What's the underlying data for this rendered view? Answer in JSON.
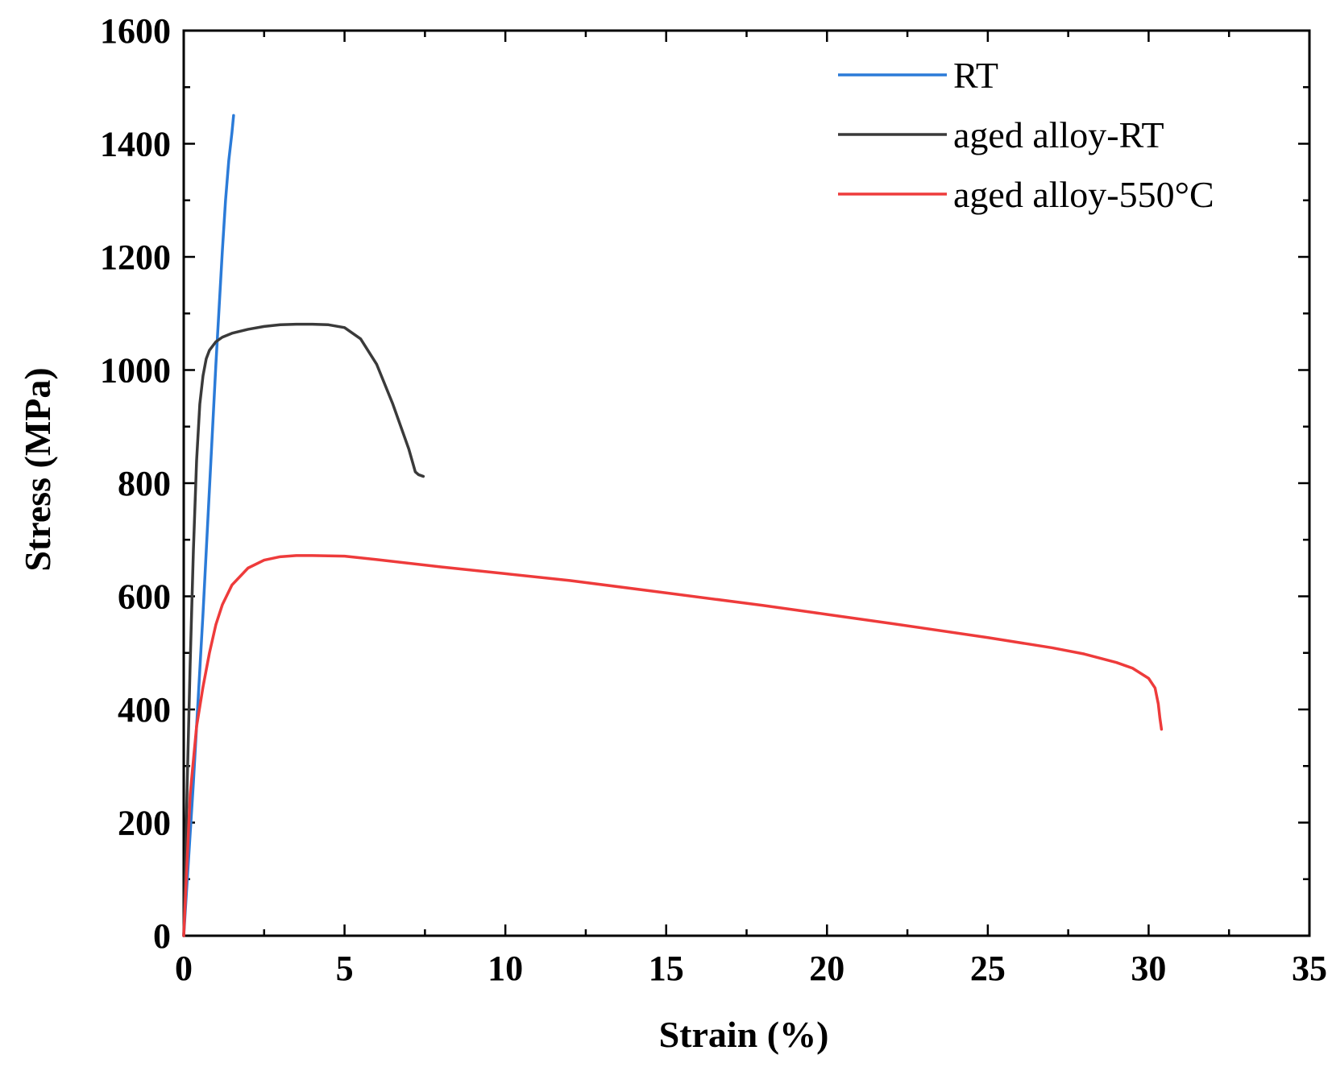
{
  "chart_data": {
    "type": "line",
    "title": "",
    "xlabel": "Strain (%)",
    "ylabel": "Stress (MPa)",
    "xlim": [
      0,
      35
    ],
    "ylim": [
      0,
      1600
    ],
    "xticks": [
      0,
      5,
      10,
      15,
      20,
      25,
      30,
      35
    ],
    "yticks": [
      0,
      200,
      400,
      600,
      800,
      1000,
      1200,
      1400,
      1600
    ],
    "xtick_labels": [
      "0",
      "5",
      "10",
      "15",
      "20",
      "25",
      "30",
      "35"
    ],
    "ytick_labels": [
      "0",
      "200",
      "400",
      "600",
      "800",
      "1000",
      "1200",
      "1400",
      "1600"
    ],
    "grid": false,
    "legend_position": "top-right",
    "series": [
      {
        "name": "RT",
        "color": "#2b7bd8",
        "x": [
          0,
          0.1,
          0.2,
          0.3,
          0.4,
          0.5,
          0.6,
          0.7,
          0.8,
          0.9,
          1.0,
          1.1,
          1.2,
          1.3,
          1.4,
          1.5,
          1.55
        ],
        "y": [
          0,
          90,
          180,
          270,
          370,
          470,
          570,
          680,
          790,
          900,
          1010,
          1110,
          1210,
          1300,
          1370,
          1420,
          1450
        ]
      },
      {
        "name": "aged alloy-RT",
        "color": "#3a3a3a",
        "x": [
          0,
          0.1,
          0.2,
          0.3,
          0.4,
          0.5,
          0.6,
          0.7,
          0.8,
          1.0,
          1.2,
          1.5,
          2.0,
          2.5,
          3.0,
          3.5,
          4.0,
          4.5,
          5.0,
          5.5,
          6.0,
          6.5,
          7.0,
          7.2,
          7.3,
          7.45
        ],
        "y": [
          0,
          250,
          480,
          680,
          840,
          940,
          990,
          1020,
          1035,
          1050,
          1058,
          1065,
          1072,
          1077,
          1080,
          1081,
          1081,
          1080,
          1075,
          1055,
          1010,
          940,
          860,
          820,
          815,
          812
        ]
      },
      {
        "name": "aged alloy-550°C",
        "color": "#ee3b3b",
        "x": [
          0,
          0.2,
          0.4,
          0.6,
          0.8,
          1.0,
          1.2,
          1.5,
          2.0,
          2.5,
          3.0,
          3.5,
          4.0,
          5.0,
          6.0,
          8.0,
          10.0,
          12.0,
          15.0,
          18.0,
          20.0,
          22.0,
          25.0,
          27.0,
          28.0,
          29.0,
          29.5,
          30.0,
          30.2,
          30.3,
          30.35,
          30.4
        ],
        "y": [
          0,
          250,
          370,
          440,
          500,
          550,
          585,
          620,
          650,
          664,
          670,
          672,
          672,
          671,
          665,
          652,
          640,
          628,
          606,
          584,
          568,
          552,
          527,
          509,
          498,
          483,
          473,
          455,
          438,
          410,
          385,
          365
        ]
      }
    ]
  }
}
